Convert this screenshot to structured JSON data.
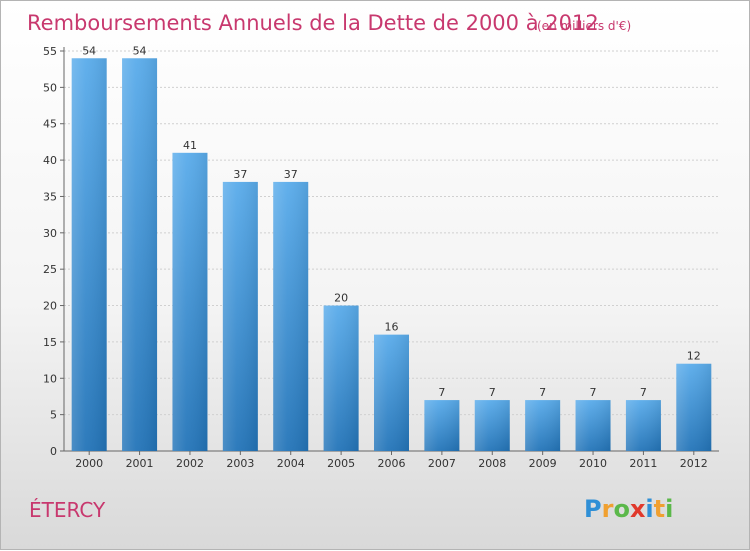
{
  "chart_data": {
    "type": "bar",
    "title": "Remboursements Annuels de la Dette de 2000 à 2012",
    "subtitle": "(en milliers d'€)",
    "categories": [
      "2000",
      "2001",
      "2002",
      "2003",
      "2004",
      "2005",
      "2006",
      "2007",
      "2008",
      "2009",
      "2010",
      "2011",
      "2012"
    ],
    "values": [
      54,
      54,
      41,
      37,
      37,
      20,
      16,
      7,
      7,
      7,
      7,
      7,
      12
    ],
    "xlabel": "",
    "ylabel": "",
    "ylim": [
      0,
      55
    ],
    "yticks": [
      0,
      5,
      10,
      15,
      20,
      25,
      30,
      35,
      40,
      45,
      50,
      55
    ],
    "grid": true,
    "bar_color_top": "#5aaceb",
    "bar_color_bottom": "#2374b8"
  },
  "commune": "ÉTERCY",
  "logo": {
    "letters": [
      "P",
      "r",
      "o",
      "x",
      "i",
      "t",
      "i"
    ],
    "colors": [
      "#2f8fd6",
      "#f0a030",
      "#5bb84a",
      "#e0392c",
      "#2f8fd6",
      "#f0a030",
      "#5bb84a"
    ]
  }
}
